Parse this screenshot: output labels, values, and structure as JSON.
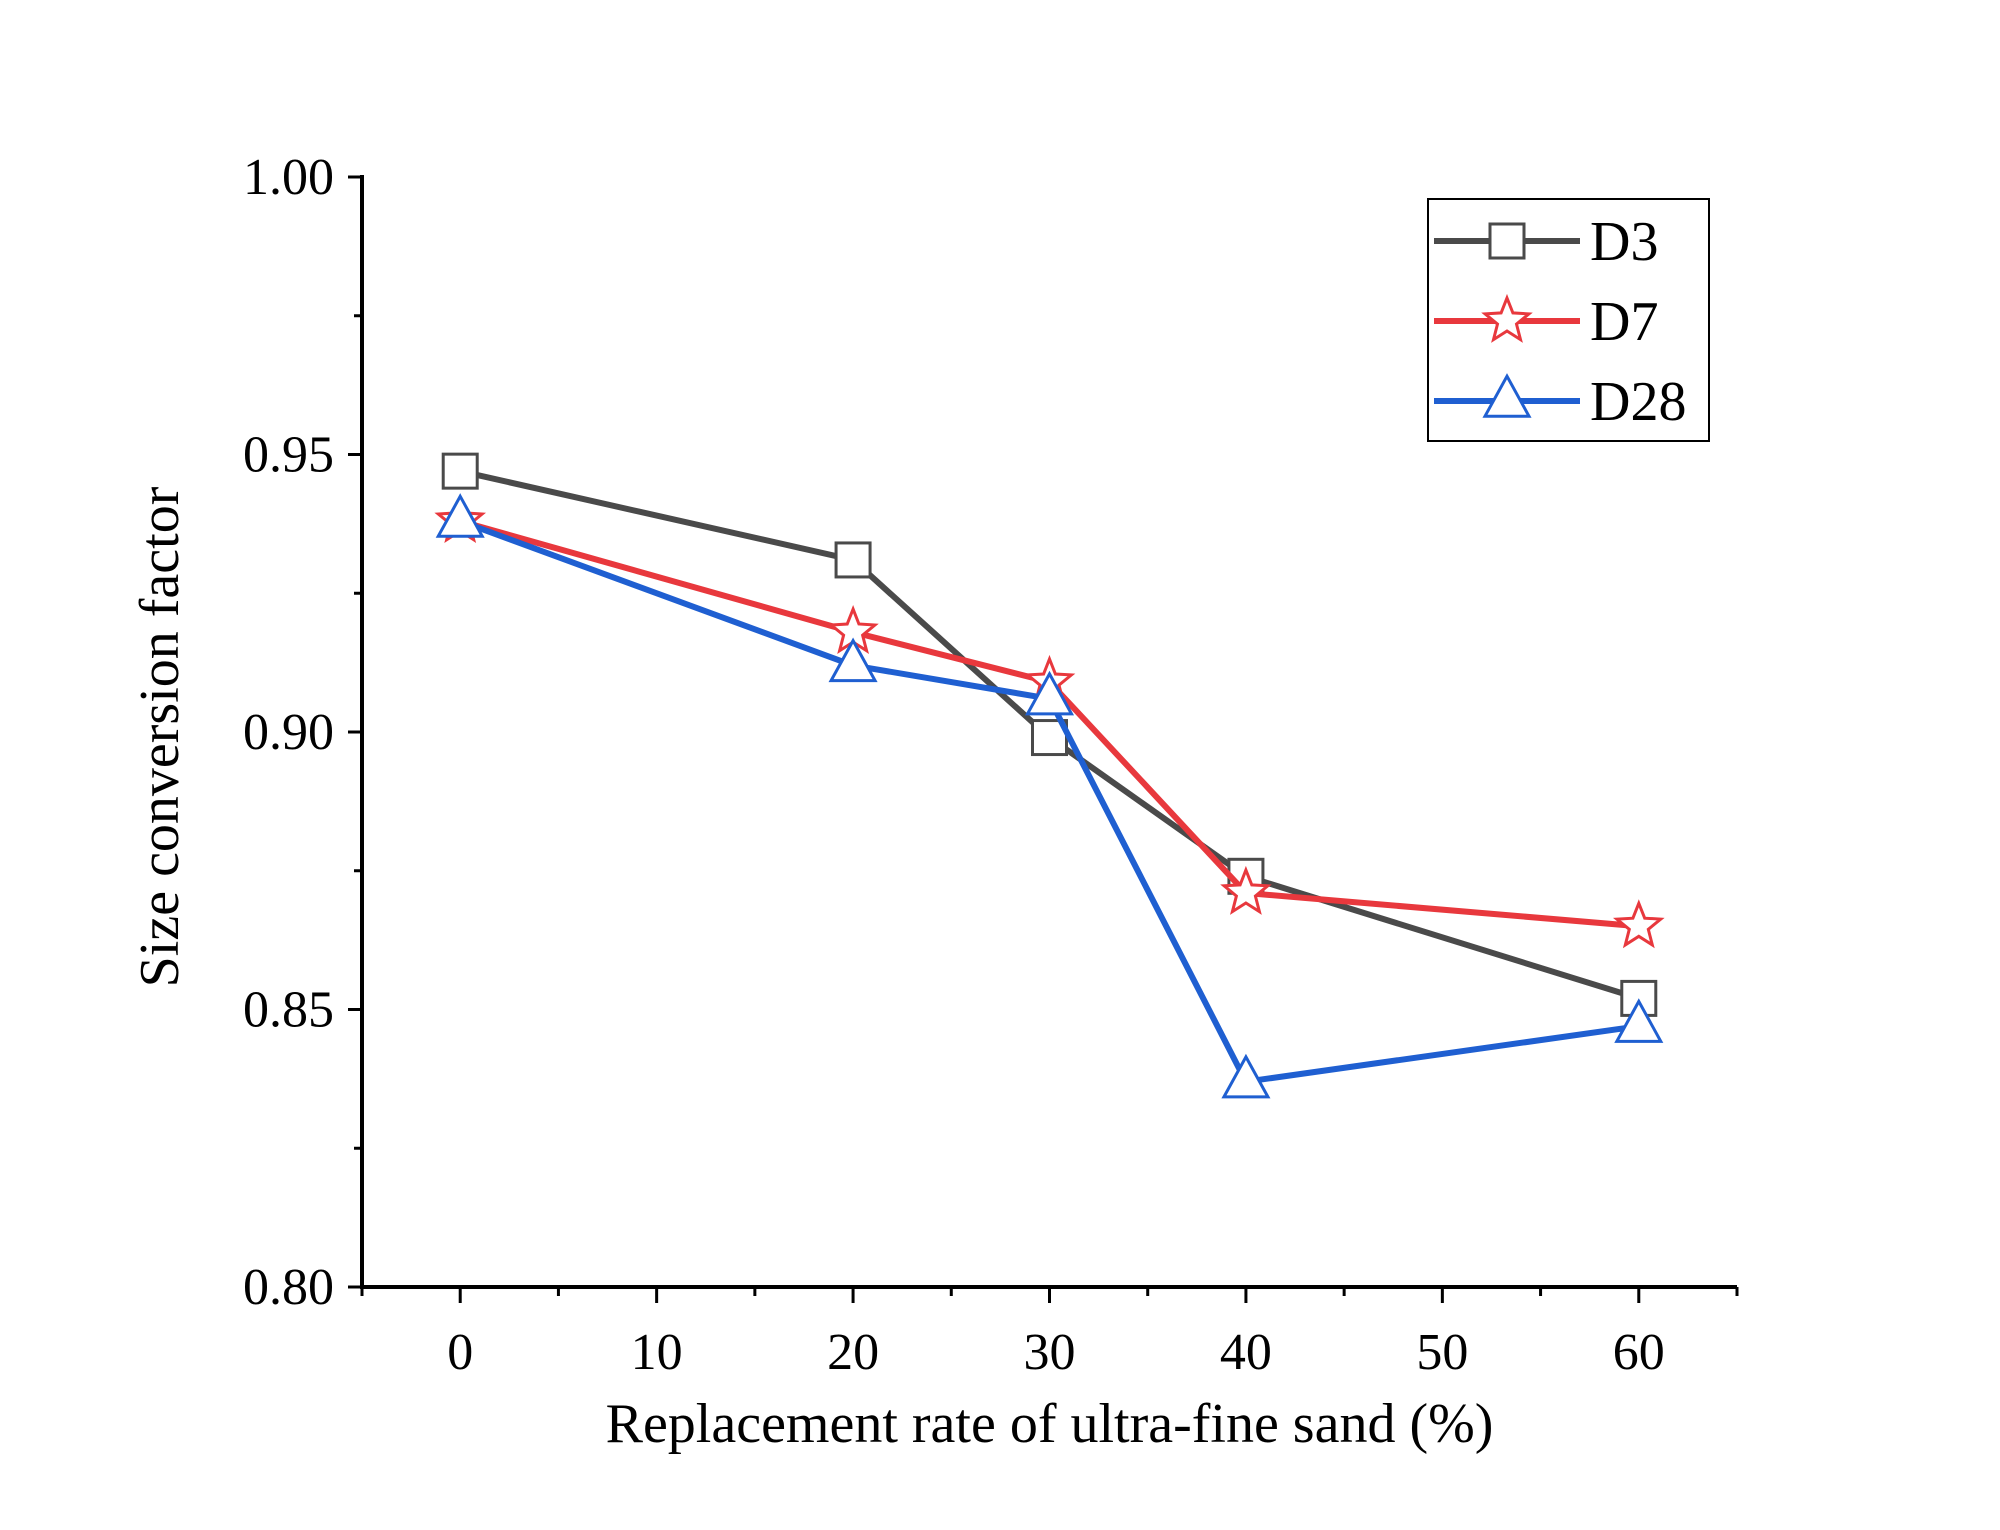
{
  "chart_data": {
    "type": "line",
    "title": "",
    "xlabel": "Replacement rate of ultra-fine sand (%)",
    "ylabel": "Size conversion factor",
    "xlim": [
      -5,
      65
    ],
    "ylim": [
      0.8,
      1.0
    ],
    "x_ticks": [
      0,
      10,
      20,
      30,
      40,
      50,
      60
    ],
    "x_tick_labels": [
      "0",
      "10",
      "20",
      "30",
      "40",
      "50",
      "60"
    ],
    "y_ticks": [
      0.8,
      0.85,
      0.9,
      0.95,
      1.0
    ],
    "y_tick_labels": [
      "0.80",
      "0.85",
      "0.90",
      "0.95",
      "1.00"
    ],
    "grid": false,
    "legend_position": "top-right",
    "x": [
      0,
      20,
      30,
      40,
      60
    ],
    "series": [
      {
        "name": "D3",
        "color": "#4a4a4a",
        "marker": "square",
        "values": [
          0.947,
          0.931,
          0.899,
          0.874,
          0.852
        ]
      },
      {
        "name": "D7",
        "color": "#e8383d",
        "marker": "star",
        "values": [
          0.938,
          0.918,
          0.909,
          0.871,
          0.865
        ]
      },
      {
        "name": "D28",
        "color": "#1f5fd1",
        "marker": "triangle",
        "values": [
          0.938,
          0.912,
          0.906,
          0.837,
          0.847
        ]
      }
    ]
  }
}
